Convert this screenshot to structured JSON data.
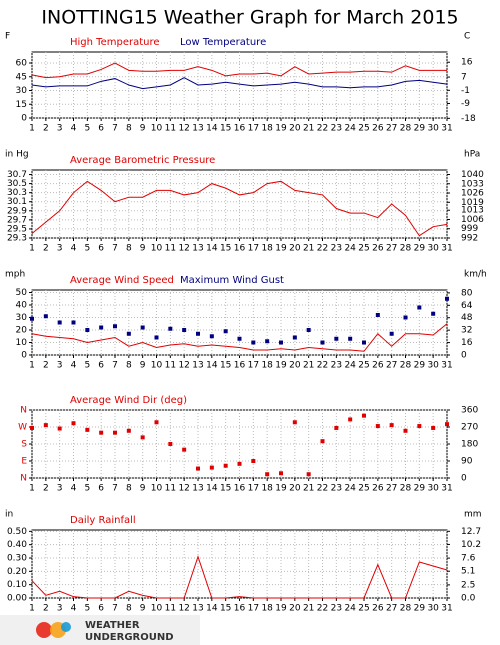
{
  "title": "INOTTING15 Weather Graph for March 2015",
  "logo_text": [
    "WEATHER",
    "UNDERGROUND"
  ],
  "chart_data": [
    {
      "type": "line",
      "ylabel": "F",
      "y2label": "C",
      "xlim": [
        1,
        31
      ],
      "x": [
        1,
        2,
        3,
        4,
        5,
        6,
        7,
        8,
        9,
        10,
        11,
        12,
        13,
        14,
        15,
        16,
        17,
        18,
        19,
        20,
        21,
        22,
        23,
        24,
        25,
        26,
        27,
        28,
        29,
        30,
        31
      ],
      "xticks": [
        1,
        2,
        3,
        4,
        5,
        6,
        7,
        8,
        9,
        10,
        11,
        12,
        13,
        14,
        15,
        16,
        17,
        18,
        19,
        20,
        21,
        22,
        23,
        24,
        25,
        26,
        27,
        28,
        29,
        30,
        31
      ],
      "ylim": [
        0,
        72
      ],
      "yticks": [
        0,
        15,
        30,
        45,
        60
      ],
      "y2lim": [
        -17.8,
        22.2
      ],
      "y2ticks": [
        -18,
        -9,
        -1,
        7,
        16
      ],
      "grid": true,
      "series": [
        {
          "name": "High Temperature",
          "color": "#e00000",
          "mode": "lines",
          "values": [
            47,
            44,
            45,
            48,
            48,
            53,
            60,
            52,
            51,
            51,
            52,
            52,
            56,
            52,
            46,
            48,
            48,
            49,
            46,
            56,
            48,
            49,
            50,
            50,
            51,
            51,
            50,
            57,
            52,
            52,
            52
          ]
        },
        {
          "name": "Low Temperature",
          "color": "#000080",
          "mode": "lines",
          "values": [
            36,
            34,
            35,
            35,
            35,
            40,
            43,
            36,
            32,
            34,
            36,
            44,
            36,
            37,
            39,
            37,
            35,
            36,
            37,
            39,
            37,
            34,
            34,
            33,
            34,
            34,
            36,
            40,
            41,
            39,
            37
          ]
        }
      ]
    },
    {
      "type": "line",
      "ylabel": "in Hg",
      "y2label": "hPa",
      "xlim": [
        1,
        31
      ],
      "x": [
        1,
        2,
        3,
        4,
        5,
        6,
        7,
        8,
        9,
        10,
        11,
        12,
        13,
        14,
        15,
        16,
        17,
        18,
        19,
        20,
        21,
        22,
        23,
        24,
        25,
        26,
        27,
        28,
        29,
        30,
        31
      ],
      "xticks": [
        1,
        2,
        3,
        4,
        5,
        6,
        7,
        8,
        9,
        10,
        11,
        12,
        13,
        14,
        15,
        16,
        17,
        18,
        19,
        20,
        21,
        22,
        23,
        24,
        25,
        26,
        27,
        28,
        29,
        30,
        31
      ],
      "ylim": [
        29.3,
        30.8
      ],
      "yticks": [
        29.3,
        29.5,
        29.7,
        29.9,
        30.1,
        30.3,
        30.5,
        30.7
      ],
      "y2lim": [
        992,
        1043.4
      ],
      "y2ticks": [
        992,
        999,
        1006,
        1013,
        1019,
        1026,
        1033,
        1040
      ],
      "grid": true,
      "series": [
        {
          "name": "Average Barometric Pressure",
          "color": "#e00000",
          "mode": "lines",
          "values": [
            29.4,
            29.65,
            29.9,
            30.3,
            30.55,
            30.35,
            30.1,
            30.2,
            30.2,
            30.35,
            30.35,
            30.25,
            30.3,
            30.5,
            30.4,
            30.25,
            30.3,
            30.5,
            30.55,
            30.35,
            30.3,
            30.25,
            29.95,
            29.85,
            29.85,
            29.75,
            30.05,
            29.8,
            29.35,
            29.55,
            29.6
          ]
        }
      ]
    },
    {
      "type": "line",
      "ylabel": "mph",
      "y2label": "km/h",
      "xlim": [
        1,
        31
      ],
      "x": [
        1,
        2,
        3,
        4,
        5,
        6,
        7,
        8,
        9,
        10,
        11,
        12,
        13,
        14,
        15,
        16,
        17,
        18,
        19,
        20,
        21,
        22,
        23,
        24,
        25,
        26,
        27,
        28,
        29,
        30,
        31
      ],
      "xticks": [
        1,
        2,
        3,
        4,
        5,
        6,
        7,
        8,
        9,
        10,
        11,
        12,
        13,
        14,
        15,
        16,
        17,
        18,
        19,
        20,
        21,
        22,
        23,
        24,
        25,
        26,
        27,
        28,
        29,
        30,
        31
      ],
      "ylim": [
        0,
        52
      ],
      "yticks": [
        0,
        10,
        20,
        30,
        40,
        50
      ],
      "y2lim": [
        0,
        83.7
      ],
      "y2ticks": [
        0,
        16,
        32,
        48,
        64,
        80
      ],
      "grid": true,
      "series": [
        {
          "name": "Average Wind Speed",
          "color": "#e00000",
          "mode": "lines",
          "values": [
            17,
            15,
            14,
            13,
            10,
            12,
            14,
            7,
            10,
            6,
            8,
            9,
            7,
            8,
            7,
            6,
            4,
            4,
            5,
            4,
            6,
            5,
            4,
            4,
            3,
            17,
            7,
            17,
            17,
            16,
            25
          ]
        },
        {
          "name": "Maximum Wind Gust",
          "color": "#000080",
          "mode": "markers",
          "values": [
            29,
            31,
            26,
            26,
            20,
            22,
            23,
            17,
            22,
            14,
            21,
            20,
            17,
            15,
            19,
            13,
            10,
            11,
            10,
            14,
            20,
            10,
            13,
            13,
            10,
            32,
            17,
            30,
            38,
            33,
            45
          ]
        }
      ]
    },
    {
      "type": "line",
      "xlim": [
        1,
        31
      ],
      "x": [
        1,
        2,
        3,
        4,
        5,
        6,
        7,
        8,
        9,
        10,
        11,
        12,
        13,
        14,
        15,
        16,
        17,
        18,
        19,
        20,
        21,
        22,
        23,
        24,
        25,
        26,
        27,
        28,
        29,
        30,
        31
      ],
      "xticks": [
        1,
        2,
        3,
        4,
        5,
        6,
        7,
        8,
        9,
        10,
        11,
        12,
        13,
        14,
        15,
        16,
        17,
        18,
        19,
        20,
        21,
        22,
        23,
        24,
        25,
        26,
        27,
        28,
        29,
        30,
        31
      ],
      "ylim": [
        0,
        360
      ],
      "yticks": [
        {
          "value": 0,
          "label": "N"
        },
        {
          "value": 90,
          "label": "E"
        },
        {
          "value": 180,
          "label": "S"
        },
        {
          "value": 270,
          "label": "W"
        },
        {
          "value": 360,
          "label": "N"
        }
      ],
      "ytick_color": "#e00000",
      "y2lim": [
        0,
        360
      ],
      "y2ticks": [
        0,
        90,
        180,
        270,
        360
      ],
      "grid": true,
      "series": [
        {
          "name": "Average Wind Dir (deg)",
          "color": "#e00000",
          "mode": "markers",
          "values": [
            265,
            280,
            262,
            290,
            255,
            240,
            240,
            250,
            215,
            295,
            180,
            150,
            50,
            55,
            65,
            75,
            90,
            20,
            25,
            295,
            20,
            195,
            265,
            310,
            330,
            275,
            280,
            250,
            275,
            265,
            285
          ]
        }
      ]
    },
    {
      "type": "line",
      "ylabel": "in",
      "y2label": "mm",
      "xlim": [
        1,
        31
      ],
      "x": [
        1,
        2,
        3,
        4,
        5,
        6,
        7,
        8,
        9,
        10,
        11,
        12,
        13,
        14,
        15,
        16,
        17,
        18,
        19,
        20,
        21,
        22,
        23,
        24,
        25,
        26,
        27,
        28,
        29,
        30,
        31
      ],
      "xticks": [
        1,
        2,
        3,
        4,
        5,
        6,
        7,
        8,
        9,
        10,
        11,
        12,
        13,
        14,
        15,
        16,
        17,
        18,
        19,
        20,
        21,
        22,
        23,
        24,
        25,
        26,
        27,
        28,
        29,
        30,
        31
      ],
      "ylim": [
        0,
        0.51
      ],
      "yticks": [
        {
          "value": 0,
          "label": "0.00"
        },
        {
          "value": 0.1,
          "label": "0.10"
        },
        {
          "value": 0.2,
          "label": "0.20"
        },
        {
          "value": 0.3,
          "label": "0.30"
        },
        {
          "value": 0.4,
          "label": "0.40"
        },
        {
          "value": 0.5,
          "label": "0.50"
        }
      ],
      "y2lim": [
        0,
        12.95
      ],
      "y2ticks": [
        {
          "value": 0,
          "label": "0.0"
        },
        2.5,
        5.1,
        7.6,
        10.2,
        12.7
      ],
      "grid": true,
      "series": [
        {
          "name": "Daily Rainfall",
          "color": "#e00000",
          "mode": "lines",
          "values": [
            0.13,
            0.02,
            0.05,
            0.01,
            0,
            0,
            0,
            0.05,
            0.02,
            0,
            0,
            0,
            0.31,
            0,
            0,
            0.01,
            0,
            0,
            0,
            0,
            0,
            0,
            0,
            0,
            0,
            0.25,
            0,
            0,
            0.27,
            0.24,
            0.21
          ]
        }
      ]
    }
  ]
}
